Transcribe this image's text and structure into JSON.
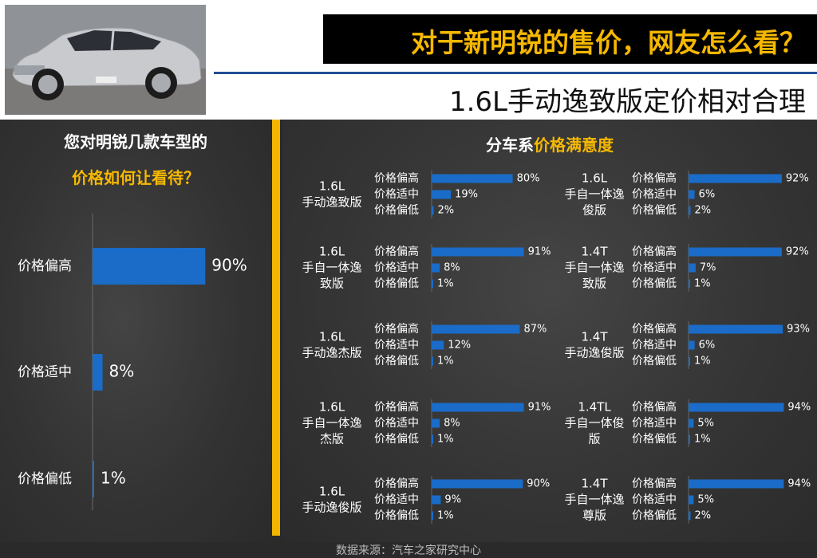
{
  "header": {
    "title": "对于新明锐的售价，网友怎么看？",
    "subtitle": "1.6L手动逸致版定价相对合理"
  },
  "left_panel": {
    "question_line1": "您对明锐几款车型的",
    "question_line2": "价格如何让看待？"
  },
  "right_panel": {
    "title_prefix": "分车系",
    "title_highlight": "价格满意度"
  },
  "source": "数据来源：汽车之家研究中心",
  "colors": {
    "bar": "#1a6cc8",
    "accent": "#f6b800",
    "title_bg": "#000000"
  },
  "chart_data": [
    {
      "type": "bar",
      "orientation": "horizontal",
      "categories": [
        "价格偏高",
        "价格适中",
        "价格偏低"
      ],
      "values": [
        90,
        8,
        1
      ],
      "labels": [
        "90%",
        "8%",
        "1%"
      ],
      "xlim": [
        0,
        100
      ]
    },
    {
      "type": "bar",
      "orientation": "horizontal",
      "layout": "small-multiples",
      "categories": [
        "价格偏高",
        "价格适中",
        "价格偏低"
      ],
      "xlim": [
        0,
        100
      ],
      "series": [
        {
          "name_lines": [
            "1.6L",
            "手动逸致版"
          ],
          "values": [
            80,
            19,
            2
          ],
          "labels": [
            "80%",
            "19%",
            "2%"
          ]
        },
        {
          "name_lines": [
            "1.6L",
            "手自一体逸",
            "俊版"
          ],
          "values": [
            92,
            6,
            2
          ],
          "labels": [
            "92%",
            "6%",
            "2%"
          ]
        },
        {
          "name_lines": [
            "1.6L",
            "手自一体逸",
            "致版"
          ],
          "values": [
            91,
            8,
            1
          ],
          "labels": [
            "91%",
            "8%",
            "1%"
          ]
        },
        {
          "name_lines": [
            "1.4T",
            "手自一体逸",
            "致版"
          ],
          "values": [
            92,
            7,
            1
          ],
          "labels": [
            "92%",
            "7%",
            "1%"
          ]
        },
        {
          "name_lines": [
            "1.6L",
            "手动逸杰版"
          ],
          "values": [
            87,
            12,
            1
          ],
          "labels": [
            "87%",
            "12%",
            "1%"
          ]
        },
        {
          "name_lines": [
            "1.4T",
            "手动逸俊版"
          ],
          "values": [
            93,
            6,
            1
          ],
          "labels": [
            "93%",
            "6%",
            "1%"
          ]
        },
        {
          "name_lines": [
            "1.6L",
            "手自一体逸",
            "杰版"
          ],
          "values": [
            91,
            8,
            1
          ],
          "labels": [
            "91%",
            "8%",
            "1%"
          ]
        },
        {
          "name_lines": [
            "1.4TL",
            "手自一体俊",
            "版"
          ],
          "values": [
            94,
            5,
            1
          ],
          "labels": [
            "94%",
            "5%",
            "1%"
          ]
        },
        {
          "name_lines": [
            "1.6L",
            "手动逸俊版"
          ],
          "values": [
            90,
            9,
            1
          ],
          "labels": [
            "90%",
            "9%",
            "1%"
          ]
        },
        {
          "name_lines": [
            "1.4T",
            "手自一体逸",
            "尊版"
          ],
          "values": [
            94,
            5,
            2
          ],
          "labels": [
            "94%",
            "5%",
            "2%"
          ]
        }
      ]
    }
  ]
}
